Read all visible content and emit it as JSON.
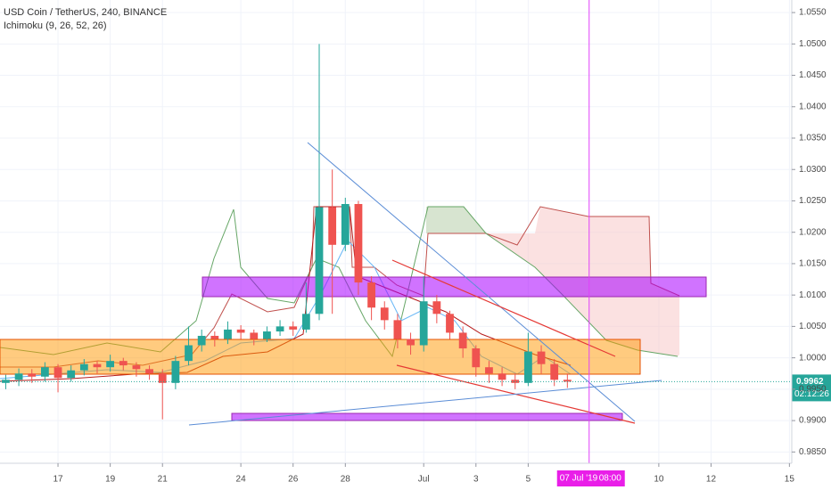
{
  "chart_data": {
    "type": "candlestick",
    "title": "USD Coin / TetherUS, 240, BINANCE",
    "subtitle": "Ichimoku (9, 26, 52, 26)",
    "up_color": "#26a69a",
    "down_color": "#ef5350",
    "xlim": [
      14.78,
      45.09
    ],
    "ylim": [
      0.9832,
      1.057
    ],
    "xticks": [
      17,
      19,
      21,
      24,
      26,
      28,
      {
        "value": 31,
        "label": "Jul"
      },
      {
        "value": 33,
        "label": "3"
      },
      {
        "value": 35,
        "label": "5"
      },
      {
        "value": 40,
        "label": "10"
      },
      {
        "value": 42,
        "label": "12"
      },
      {
        "value": 45,
        "label": "15"
      }
    ],
    "yticks": [
      {
        "value": 0.985,
        "label": "0.9850"
      },
      {
        "value": 0.99,
        "label": "0.9900"
      },
      {
        "value": 0.995,
        "label": "0.9950"
      },
      {
        "value": 1.0,
        "label": "1.0000"
      },
      {
        "value": 1.005,
        "label": "1.0050"
      },
      {
        "value": 1.01,
        "label": "1.0100"
      },
      {
        "value": 1.015,
        "label": "1.0150"
      },
      {
        "value": 1.02,
        "label": "1.0200"
      },
      {
        "value": 1.025,
        "label": "1.0250"
      },
      {
        "value": 1.03,
        "label": "1.0300"
      },
      {
        "value": 1.035,
        "label": "1.0350"
      },
      {
        "value": 1.04,
        "label": "1.0400"
      },
      {
        "value": 1.045,
        "label": "1.0450"
      },
      {
        "value": 1.05,
        "label": "1.0500"
      },
      {
        "value": 1.055,
        "label": "1.0550"
      }
    ],
    "grid": true,
    "x": [
      15,
      15.5,
      16,
      16.5,
      17,
      17.5,
      18,
      18.5,
      19,
      19.5,
      20,
      20.5,
      21,
      21.5,
      22,
      22.5,
      23,
      23.5,
      24,
      24.5,
      25,
      25.5,
      26,
      26.5,
      27,
      27.5,
      28,
      28.5,
      29,
      29.5,
      30,
      30.5,
      31,
      31.5,
      32,
      32.5,
      33,
      33.5,
      34,
      34.5,
      35,
      35.5,
      36,
      36.5
    ],
    "open": [
      0.996,
      0.9965,
      0.9975,
      0.997,
      0.9985,
      0.9968,
      0.998,
      0.999,
      0.9985,
      0.9995,
      0.9988,
      0.9982,
      0.9975,
      0.996,
      0.9995,
      1.002,
      1.0035,
      1.003,
      1.0045,
      1.004,
      1.003,
      1.0042,
      1.005,
      1.0045,
      1.007,
      1.024,
      1.018,
      1.0245,
      1.012,
      1.008,
      1.006,
      1.003,
      1.002,
      1.009,
      1.007,
      1.004,
      1.0015,
      0.9985,
      0.9975,
      0.9965,
      0.996,
      1.001,
      0.999,
      0.9965
    ],
    "high": [
      0.9973,
      0.9983,
      0.9982,
      0.9993,
      0.999,
      0.9988,
      0.9998,
      0.9995,
      1.0005,
      1.0,
      0.9993,
      0.9988,
      0.9982,
      1.0003,
      1.005,
      1.0045,
      1.0042,
      1.0058,
      1.0052,
      1.0045,
      1.005,
      1.006,
      1.0058,
      1.012,
      1.05,
      1.03,
      1.0255,
      1.025,
      1.013,
      1.009,
      1.007,
      1.004,
      1.013,
      1.01,
      1.0075,
      1.005,
      1.002,
      0.9995,
      0.9985,
      0.9975,
      1.004,
      1.002,
      0.9998,
      0.9975
    ],
    "low": [
      0.995,
      0.9955,
      0.996,
      0.9962,
      0.9945,
      0.9962,
      0.9972,
      0.9975,
      0.9978,
      0.998,
      0.997,
      0.9965,
      0.9902,
      0.995,
      0.9988,
      1.001,
      1.0018,
      1.0022,
      1.003,
      1.002,
      1.0025,
      1.0035,
      1.0035,
      1.004,
      1.006,
      1.007,
      1.017,
      1.01,
      1.006,
      1.0045,
      1.0015,
      1.0005,
      1.001,
      1.0055,
      1.003,
      1.0,
      0.997,
      0.996,
      0.9955,
      0.995,
      0.9955,
      0.9975,
      0.9955,
      0.9952
    ],
    "close": [
      0.9965,
      0.9975,
      0.997,
      0.9985,
      0.9968,
      0.998,
      0.999,
      0.9985,
      0.9995,
      0.9988,
      0.9982,
      0.9975,
      0.996,
      0.9995,
      1.002,
      1.0035,
      1.003,
      1.0045,
      1.004,
      1.003,
      1.0042,
      1.005,
      1.0045,
      1.007,
      1.024,
      1.018,
      1.0245,
      1.012,
      1.008,
      1.006,
      1.003,
      1.002,
      1.009,
      1.007,
      1.004,
      1.0015,
      0.9985,
      0.9975,
      0.9965,
      0.996,
      1.001,
      0.999,
      0.9965,
      0.9962
    ],
    "last_price": {
      "value": 0.9962,
      "countdown": "02:12:26"
    },
    "cursor": {
      "x": 37.333,
      "date": "07 Jul '19",
      "time": "08:00"
    }
  }
}
